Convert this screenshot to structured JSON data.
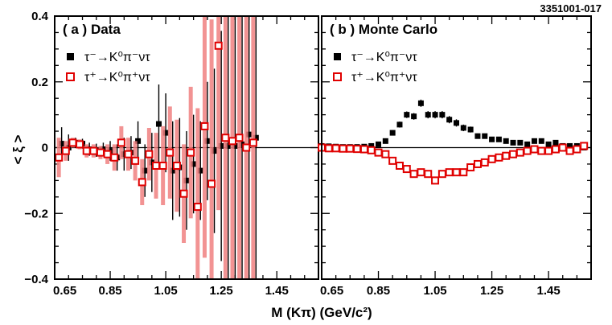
{
  "figure_id": "3351001-017",
  "xlabel": "M (Kπ) (GeV/c²)",
  "ylabel": "< ξ >",
  "chart_data": [
    {
      "type": "scatter",
      "panel": "a",
      "title": "( a ) Data",
      "xlim": [
        0.65,
        1.6
      ],
      "ylim": [
        -0.4,
        0.4
      ],
      "xticks": [
        "0.65",
        "0.85",
        "1.05",
        "1.25",
        "1.45"
      ],
      "yticks": [
        "−0.4",
        "−0.2",
        "0",
        "0.2",
        "0.4"
      ],
      "legend": [
        "τ⁻→K⁰π⁻ντ",
        "τ⁺→K⁰π⁺ντ"
      ],
      "series": [
        {
          "name": "τ⁻→K⁰π⁻ντ",
          "marker": "filled-square",
          "color": "#000000",
          "points": [
            [
              0.675,
              0.012,
              0.05
            ],
            [
              0.7,
              0.0,
              0.04
            ],
            [
              0.725,
              0.015,
              0.015
            ],
            [
              0.75,
              0.012,
              0.015
            ],
            [
              0.775,
              -0.005,
              0.02
            ],
            [
              0.8,
              -0.008,
              0.02
            ],
            [
              0.825,
              -0.005,
              0.02
            ],
            [
              0.85,
              -0.01,
              0.03
            ],
            [
              0.875,
              -0.03,
              0.04
            ],
            [
              0.9,
              -0.02,
              0.05
            ],
            [
              0.925,
              -0.015,
              0.05
            ],
            [
              0.95,
              0.02,
              0.06
            ],
            [
              0.975,
              -0.07,
              0.08
            ],
            [
              1.0,
              -0.045,
              0.09
            ],
            [
              1.025,
              0.072,
              0.12
            ],
            [
              1.05,
              0.045,
              0.12
            ],
            [
              1.075,
              -0.07,
              0.15
            ],
            [
              1.1,
              -0.06,
              0.15
            ],
            [
              1.125,
              -0.1,
              0.15
            ],
            [
              1.15,
              -0.05,
              0.15
            ],
            [
              1.175,
              -0.07,
              0.15
            ],
            [
              1.2,
              0.02,
              0.18
            ],
            [
              1.225,
              -0.01,
              0.25
            ],
            [
              1.25,
              0.005,
              0.35
            ],
            [
              1.275,
              0.005,
              0.5
            ],
            [
              1.3,
              0.005,
              0.5
            ],
            [
              1.325,
              0.01,
              0.5
            ],
            [
              1.35,
              0.04,
              0.5
            ],
            [
              1.375,
              0.03,
              0.5
            ]
          ]
        },
        {
          "name": "τ⁺→K⁰π⁺ντ",
          "marker": "open-square",
          "color": "#e00000",
          "points": [
            [
              0.665,
              -0.03,
              0.06
            ],
            [
              0.69,
              -0.01,
              0.03
            ],
            [
              0.715,
              0.015,
              0.015
            ],
            [
              0.74,
              0.01,
              0.015
            ],
            [
              0.765,
              -0.01,
              0.02
            ],
            [
              0.79,
              -0.01,
              0.02
            ],
            [
              0.815,
              -0.015,
              0.02
            ],
            [
              0.84,
              -0.02,
              0.03
            ],
            [
              0.865,
              -0.03,
              0.04
            ],
            [
              0.89,
              0.015,
              0.05
            ],
            [
              0.915,
              -0.02,
              0.05
            ],
            [
              0.94,
              -0.04,
              0.06
            ],
            [
              0.965,
              -0.105,
              0.07
            ],
            [
              0.99,
              -0.02,
              0.08
            ],
            [
              1.015,
              -0.055,
              0.1
            ],
            [
              1.04,
              -0.055,
              0.12
            ],
            [
              1.065,
              -0.015,
              0.14
            ],
            [
              1.09,
              -0.055,
              0.14
            ],
            [
              1.115,
              -0.14,
              0.15
            ],
            [
              1.14,
              -0.015,
              0.2
            ],
            [
              1.165,
              -0.18,
              0.3
            ],
            [
              1.19,
              0.065,
              0.4
            ],
            [
              1.215,
              -0.11,
              0.5
            ],
            [
              1.24,
              0.31,
              0.5
            ],
            [
              1.265,
              0.03,
              0.5
            ],
            [
              1.29,
              0.02,
              0.5
            ],
            [
              1.315,
              0.03,
              0.5
            ],
            [
              1.34,
              0.0,
              0.5
            ],
            [
              1.365,
              0.015,
              0.5
            ]
          ]
        }
      ]
    },
    {
      "type": "scatter",
      "panel": "b",
      "title": "( b ) Monte Carlo",
      "xlim": [
        0.65,
        1.6
      ],
      "ylim": [
        -0.4,
        0.4
      ],
      "xticks": [
        "0.65",
        "0.85",
        "1.05",
        "1.25",
        "1.45"
      ],
      "legend": [
        "τ⁻→K⁰π⁻ντ",
        "τ⁺→K⁰π⁺ντ"
      ],
      "series": [
        {
          "name": "τ⁻→K⁰π⁻ντ",
          "marker": "filled-square",
          "color": "#000000",
          "points": [
            [
              0.65,
              0.005,
              0.004
            ],
            [
              0.675,
              0.004,
              0.004
            ],
            [
              0.7,
              0.003,
              0.004
            ],
            [
              0.725,
              0.002,
              0.004
            ],
            [
              0.75,
              0.002,
              0.004
            ],
            [
              0.775,
              0.002,
              0.004
            ],
            [
              0.8,
              0.003,
              0.004
            ],
            [
              0.825,
              0.005,
              0.004
            ],
            [
              0.85,
              0.01,
              0.005
            ],
            [
              0.875,
              0.02,
              0.006
            ],
            [
              0.9,
              0.045,
              0.008
            ],
            [
              0.925,
              0.07,
              0.009
            ],
            [
              0.95,
              0.1,
              0.01
            ],
            [
              0.975,
              0.095,
              0.01
            ],
            [
              1.0,
              0.135,
              0.011
            ],
            [
              1.025,
              0.1,
              0.011
            ],
            [
              1.05,
              0.1,
              0.011
            ],
            [
              1.075,
              0.1,
              0.011
            ],
            [
              1.1,
              0.085,
              0.011
            ],
            [
              1.125,
              0.075,
              0.011
            ],
            [
              1.15,
              0.06,
              0.01
            ],
            [
              1.175,
              0.055,
              0.009
            ],
            [
              1.2,
              0.035,
              0.008
            ],
            [
              1.225,
              0.035,
              0.007
            ],
            [
              1.25,
              0.025,
              0.006
            ],
            [
              1.275,
              0.025,
              0.006
            ],
            [
              1.3,
              0.02,
              0.006
            ],
            [
              1.325,
              0.015,
              0.006
            ],
            [
              1.35,
              0.015,
              0.006
            ],
            [
              1.375,
              0.01,
              0.006
            ],
            [
              1.4,
              0.02,
              0.006
            ],
            [
              1.425,
              0.02,
              0.006
            ],
            [
              1.45,
              0.01,
              0.006
            ],
            [
              1.475,
              0.015,
              0.006
            ],
            [
              1.5,
              0.005,
              0.007
            ],
            [
              1.525,
              0.005,
              0.007
            ],
            [
              1.55,
              0.005,
              0.007
            ],
            [
              1.575,
              0.0,
              0.008
            ]
          ]
        },
        {
          "name": "τ⁺→K⁰π⁺ντ",
          "marker": "open-square",
          "color": "#e00000",
          "points": [
            [
              0.65,
              0.0,
              0.004
            ],
            [
              0.675,
              -0.002,
              0.004
            ],
            [
              0.7,
              -0.002,
              0.004
            ],
            [
              0.725,
              -0.003,
              0.004
            ],
            [
              0.75,
              -0.003,
              0.004
            ],
            [
              0.775,
              -0.004,
              0.004
            ],
            [
              0.8,
              -0.005,
              0.004
            ],
            [
              0.825,
              -0.008,
              0.004
            ],
            [
              0.85,
              -0.015,
              0.005
            ],
            [
              0.875,
              -0.02,
              0.006
            ],
            [
              0.9,
              -0.04,
              0.008
            ],
            [
              0.925,
              -0.055,
              0.009
            ],
            [
              0.95,
              -0.065,
              0.01
            ],
            [
              0.975,
              -0.08,
              0.01
            ],
            [
              1.0,
              -0.075,
              0.011
            ],
            [
              1.025,
              -0.08,
              0.011
            ],
            [
              1.05,
              -0.1,
              0.011
            ],
            [
              1.075,
              -0.08,
              0.011
            ],
            [
              1.1,
              -0.075,
              0.011
            ],
            [
              1.125,
              -0.075,
              0.011
            ],
            [
              1.15,
              -0.075,
              0.011
            ],
            [
              1.175,
              -0.06,
              0.01
            ],
            [
              1.2,
              -0.05,
              0.009
            ],
            [
              1.225,
              -0.045,
              0.008
            ],
            [
              1.25,
              -0.035,
              0.007
            ],
            [
              1.275,
              -0.03,
              0.007
            ],
            [
              1.3,
              -0.025,
              0.006
            ],
            [
              1.325,
              -0.02,
              0.006
            ],
            [
              1.35,
              -0.015,
              0.006
            ],
            [
              1.375,
              -0.01,
              0.006
            ],
            [
              1.4,
              -0.005,
              0.006
            ],
            [
              1.425,
              -0.01,
              0.006
            ],
            [
              1.45,
              -0.01,
              0.006
            ],
            [
              1.475,
              -0.005,
              0.007
            ],
            [
              1.5,
              0.0,
              0.007
            ],
            [
              1.525,
              -0.01,
              0.007
            ],
            [
              1.55,
              -0.005,
              0.007
            ],
            [
              1.575,
              0.005,
              0.008
            ]
          ]
        }
      ]
    }
  ]
}
